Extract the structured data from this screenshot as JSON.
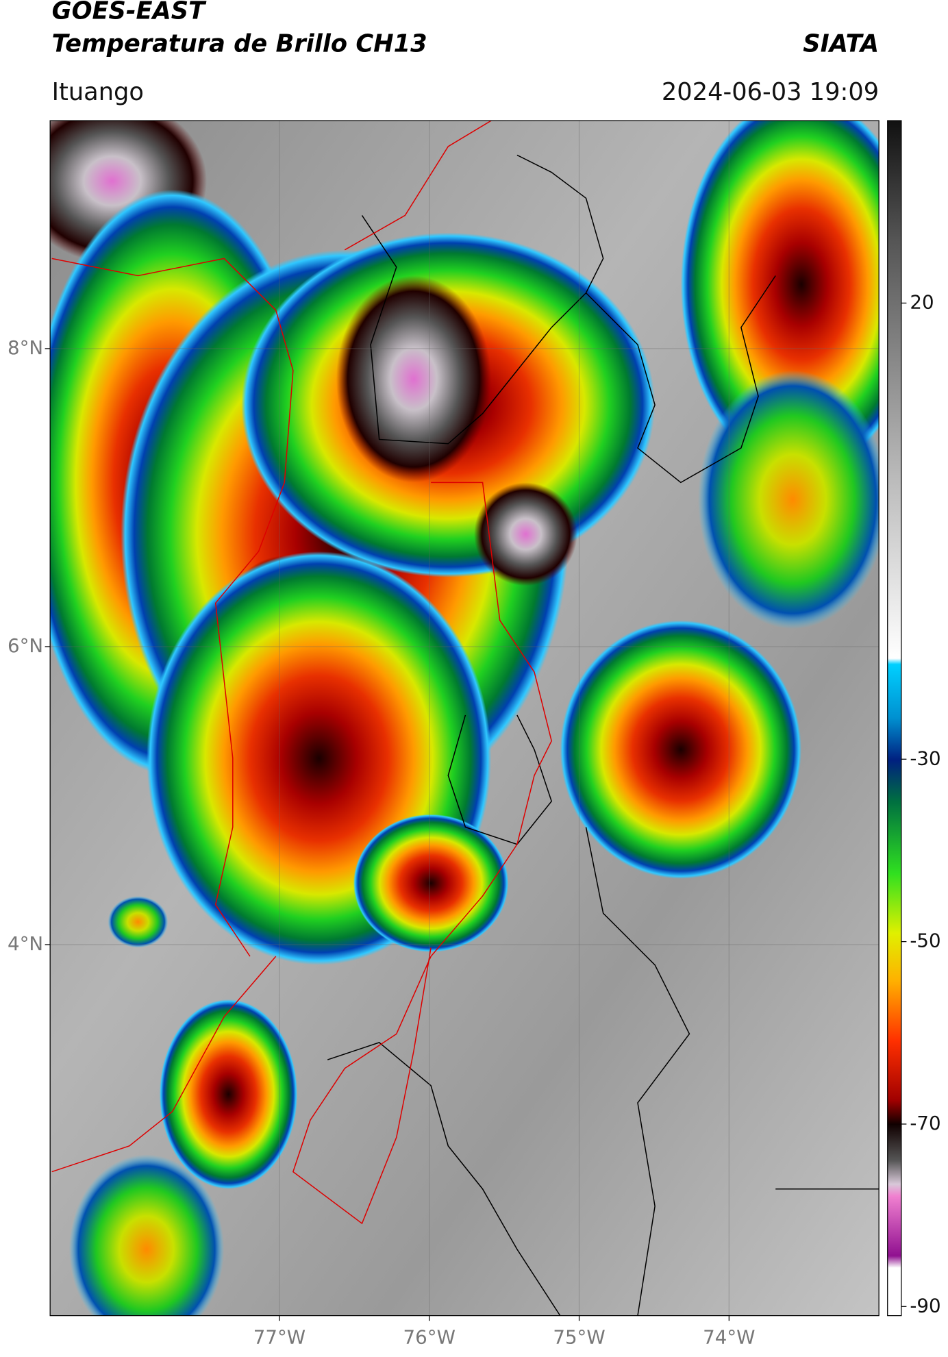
{
  "header": {
    "title_line1": "GOES-EAST",
    "title_line2": "Temperatura de Brillo CH13",
    "source": "SIATA",
    "location": "Ituango",
    "datetime": "2024-06-03 19:09"
  },
  "map": {
    "xlim": [
      -78.53,
      -73.0
    ],
    "ylim": [
      1.51,
      9.53
    ],
    "xticks": [
      {
        "value": -77,
        "label": "77°W"
      },
      {
        "value": -76,
        "label": "76°W"
      },
      {
        "value": -75,
        "label": "75°W"
      },
      {
        "value": -74,
        "label": "74°W"
      }
    ],
    "yticks": [
      {
        "value": 8,
        "label": "8°N"
      },
      {
        "value": 6,
        "label": "6°N"
      },
      {
        "value": 4,
        "label": "4°N"
      }
    ],
    "grid": true
  },
  "colorbar": {
    "lim": [
      -91,
      40
    ],
    "ticks": [
      20,
      -30,
      -50,
      -70,
      -90
    ]
  }
}
